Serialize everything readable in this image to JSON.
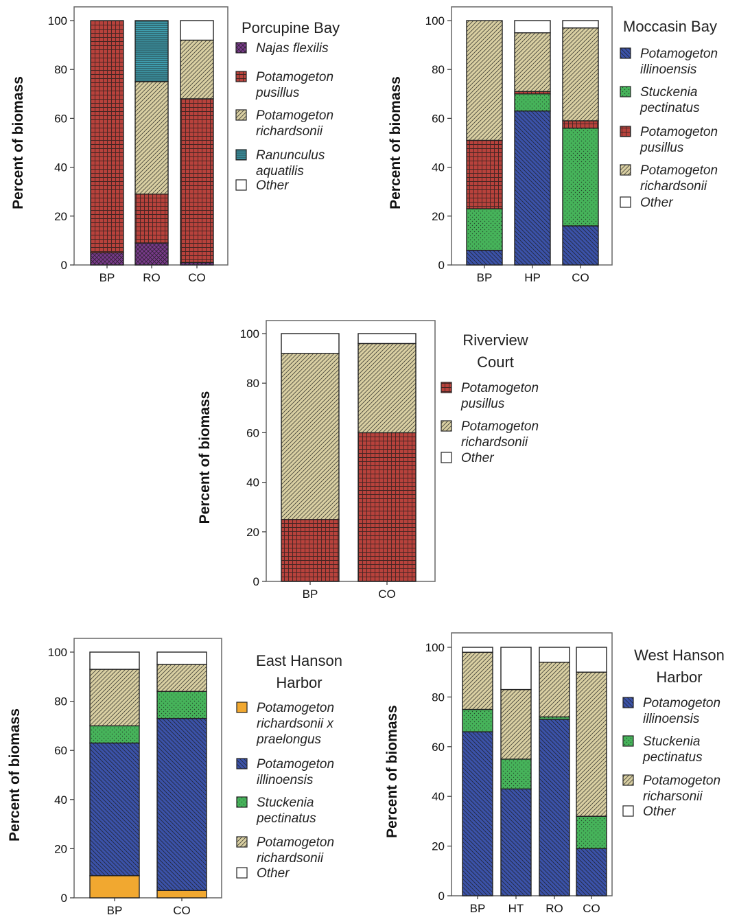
{
  "colors": {
    "Najas flexilis": "#7a3a8c",
    "Potamogeton pusillus": "#b8423c",
    "Potamogeton richardsonii": "#d9cfa2",
    "Ranunculus aquatilis": "#3f9fb0",
    "Potamogeton illinoensis": "#3b52a8",
    "Stuckenia pectinatus": "#46b35a",
    "Potamogeton richardsonii x praelongus": "#f1a830",
    "Potamogeton richarsonii": "#d9cfa2",
    "Other": "#ffffff"
  },
  "chart_data": [
    {
      "type": "bar",
      "stacked": true,
      "legend_title": "Porcupine Bay",
      "ylabel": "Percent of biomass",
      "ylim": [
        0,
        100
      ],
      "yticks": [
        0,
        20,
        40,
        60,
        80,
        100
      ],
      "categories": [
        "BP",
        "RO",
        "CO"
      ],
      "series": [
        {
          "name": "Najas flexilis",
          "legend": [
            "Najas flexilis"
          ],
          "values": [
            5,
            9,
            1
          ],
          "pattern": "cross"
        },
        {
          "name": "Potamogeton pusillus",
          "legend": [
            "Potamogeton",
            "pusillus"
          ],
          "values": [
            95,
            20,
            67
          ],
          "pattern": "grid"
        },
        {
          "name": "Potamogeton richardsonii",
          "legend": [
            "Potamogeton",
            "richardsonii"
          ],
          "values": [
            0,
            46,
            24
          ],
          "pattern": "diagR"
        },
        {
          "name": "Ranunculus aquatilis",
          "legend": [
            "Ranunculus",
            "aquatilis"
          ],
          "values": [
            0,
            25,
            0
          ],
          "pattern": "hlines"
        },
        {
          "name": "Other",
          "legend": [
            "Other"
          ],
          "values": [
            0,
            0,
            8
          ],
          "pattern": "none"
        }
      ]
    },
    {
      "type": "bar",
      "stacked": true,
      "legend_title": "Moccasin Bay",
      "ylabel": "Percent of biomass",
      "ylim": [
        0,
        100
      ],
      "yticks": [
        0,
        20,
        40,
        60,
        80,
        100
      ],
      "categories": [
        "BP",
        "HP",
        "CO"
      ],
      "series": [
        {
          "name": "Potamogeton illinoensis",
          "legend": [
            "Potamogeton",
            "illinoensis"
          ],
          "values": [
            6,
            63,
            16
          ],
          "pattern": "diagL"
        },
        {
          "name": "Stuckenia pectinatus",
          "legend": [
            "Stuckenia",
            "pectinatus"
          ],
          "values": [
            17,
            7,
            40
          ],
          "pattern": "dots"
        },
        {
          "name": "Potamogeton pusillus",
          "legend": [
            "Potamogeton",
            "pusillus"
          ],
          "values": [
            28,
            1,
            3
          ],
          "pattern": "grid"
        },
        {
          "name": "Potamogeton richardsonii",
          "legend": [
            "Potamogeton",
            "richardsonii"
          ],
          "values": [
            49,
            24,
            38
          ],
          "pattern": "diagR"
        },
        {
          "name": "Other",
          "legend": [
            "Other"
          ],
          "values": [
            0,
            5,
            3
          ],
          "pattern": "none"
        }
      ]
    },
    {
      "type": "bar",
      "stacked": true,
      "legend_title": "Riverview Court",
      "ylabel": "Percent of biomass",
      "ylim": [
        0,
        100
      ],
      "yticks": [
        0,
        20,
        40,
        60,
        80,
        100
      ],
      "categories": [
        "BP",
        "CO"
      ],
      "series": [
        {
          "name": "Potamogeton pusillus",
          "legend": [
            "Potamogeton",
            "pusillus"
          ],
          "values": [
            25,
            60
          ],
          "pattern": "grid"
        },
        {
          "name": "Potamogeton richardsonii",
          "legend": [
            "Potamogeton",
            "richardsonii"
          ],
          "values": [
            67,
            36
          ],
          "pattern": "diagR"
        },
        {
          "name": "Other",
          "legend": [
            "Other"
          ],
          "values": [
            8,
            4
          ],
          "pattern": "none"
        }
      ]
    },
    {
      "type": "bar",
      "stacked": true,
      "legend_title": "East Hanson Harbor",
      "ylabel": "Percent of biomass",
      "ylim": [
        0,
        100
      ],
      "yticks": [
        0,
        20,
        40,
        60,
        80,
        100
      ],
      "categories": [
        "BP",
        "CO"
      ],
      "series": [
        {
          "name": "Potamogeton richardsonii x praelongus",
          "legend": [
            "Potamogeton",
            "richardsonii x",
            "praelongus"
          ],
          "values": [
            9,
            3
          ],
          "pattern": "none"
        },
        {
          "name": "Potamogeton illinoensis",
          "legend": [
            "Potamogeton",
            "illinoensis"
          ],
          "values": [
            54,
            70
          ],
          "pattern": "diagL"
        },
        {
          "name": "Stuckenia pectinatus",
          "legend": [
            "Stuckenia",
            "pectinatus"
          ],
          "values": [
            7,
            11
          ],
          "pattern": "dots"
        },
        {
          "name": "Potamogeton richardsonii",
          "legend": [
            "Potamogeton",
            "richardsonii"
          ],
          "values": [
            23,
            11
          ],
          "pattern": "diagR"
        },
        {
          "name": "Other",
          "legend": [
            "Other"
          ],
          "values": [
            7,
            5
          ],
          "pattern": "none"
        }
      ]
    },
    {
      "type": "bar",
      "stacked": true,
      "legend_title": "West Hanson Harbor",
      "ylabel": "Percent of biomass",
      "ylim": [
        0,
        100
      ],
      "yticks": [
        0,
        20,
        40,
        60,
        80,
        100
      ],
      "categories": [
        "BP",
        "HT",
        "RO",
        "CO"
      ],
      "series": [
        {
          "name": "Potamogeton illinoensis",
          "legend": [
            "Potamogeton",
            "illinoensis"
          ],
          "values": [
            66,
            43,
            71,
            19
          ],
          "pattern": "diagL"
        },
        {
          "name": "Stuckenia pectinatus",
          "legend": [
            "Stuckenia",
            "pectinatus"
          ],
          "values": [
            9,
            12,
            1,
            13
          ],
          "pattern": "dots"
        },
        {
          "name": "Potamogeton richarsonii",
          "legend": [
            "Potamogeton",
            "richarsonii"
          ],
          "values": [
            23,
            28,
            22,
            58
          ],
          "pattern": "diagR"
        },
        {
          "name": "Other",
          "legend": [
            "Other"
          ],
          "values": [
            2,
            17,
            6,
            10
          ],
          "pattern": "none"
        }
      ]
    }
  ]
}
